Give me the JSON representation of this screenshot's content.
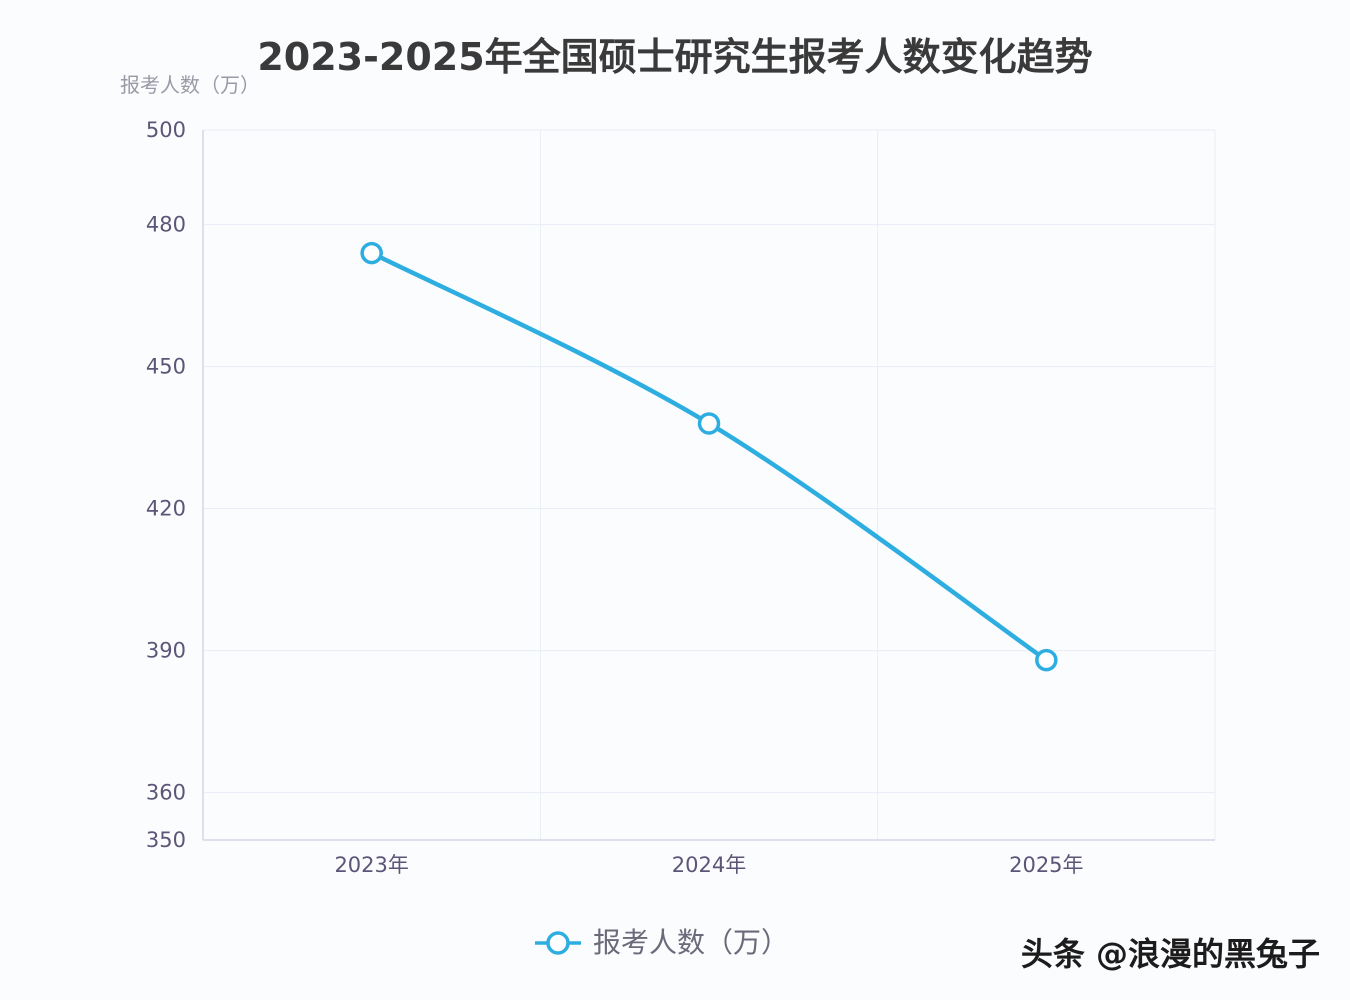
{
  "chart_data": {
    "type": "line",
    "title": "2023-2025年全国硕士研究生报考人数变化趋势",
    "ylabel": "报考人数（万）",
    "xlabel": "",
    "categories": [
      "2023年",
      "2024年",
      "2025年"
    ],
    "series": [
      {
        "name": "报考人数（万）",
        "values": [
          474,
          438,
          388
        ],
        "color": "#2eaee0"
      }
    ],
    "ylim": [
      350,
      500
    ],
    "yticks": [
      500,
      480,
      450,
      420,
      390,
      360,
      350
    ],
    "grid": true,
    "legend_position": "bottom-center",
    "smooth": true
  },
  "watermark": "头条 @浪漫的黑兔子"
}
